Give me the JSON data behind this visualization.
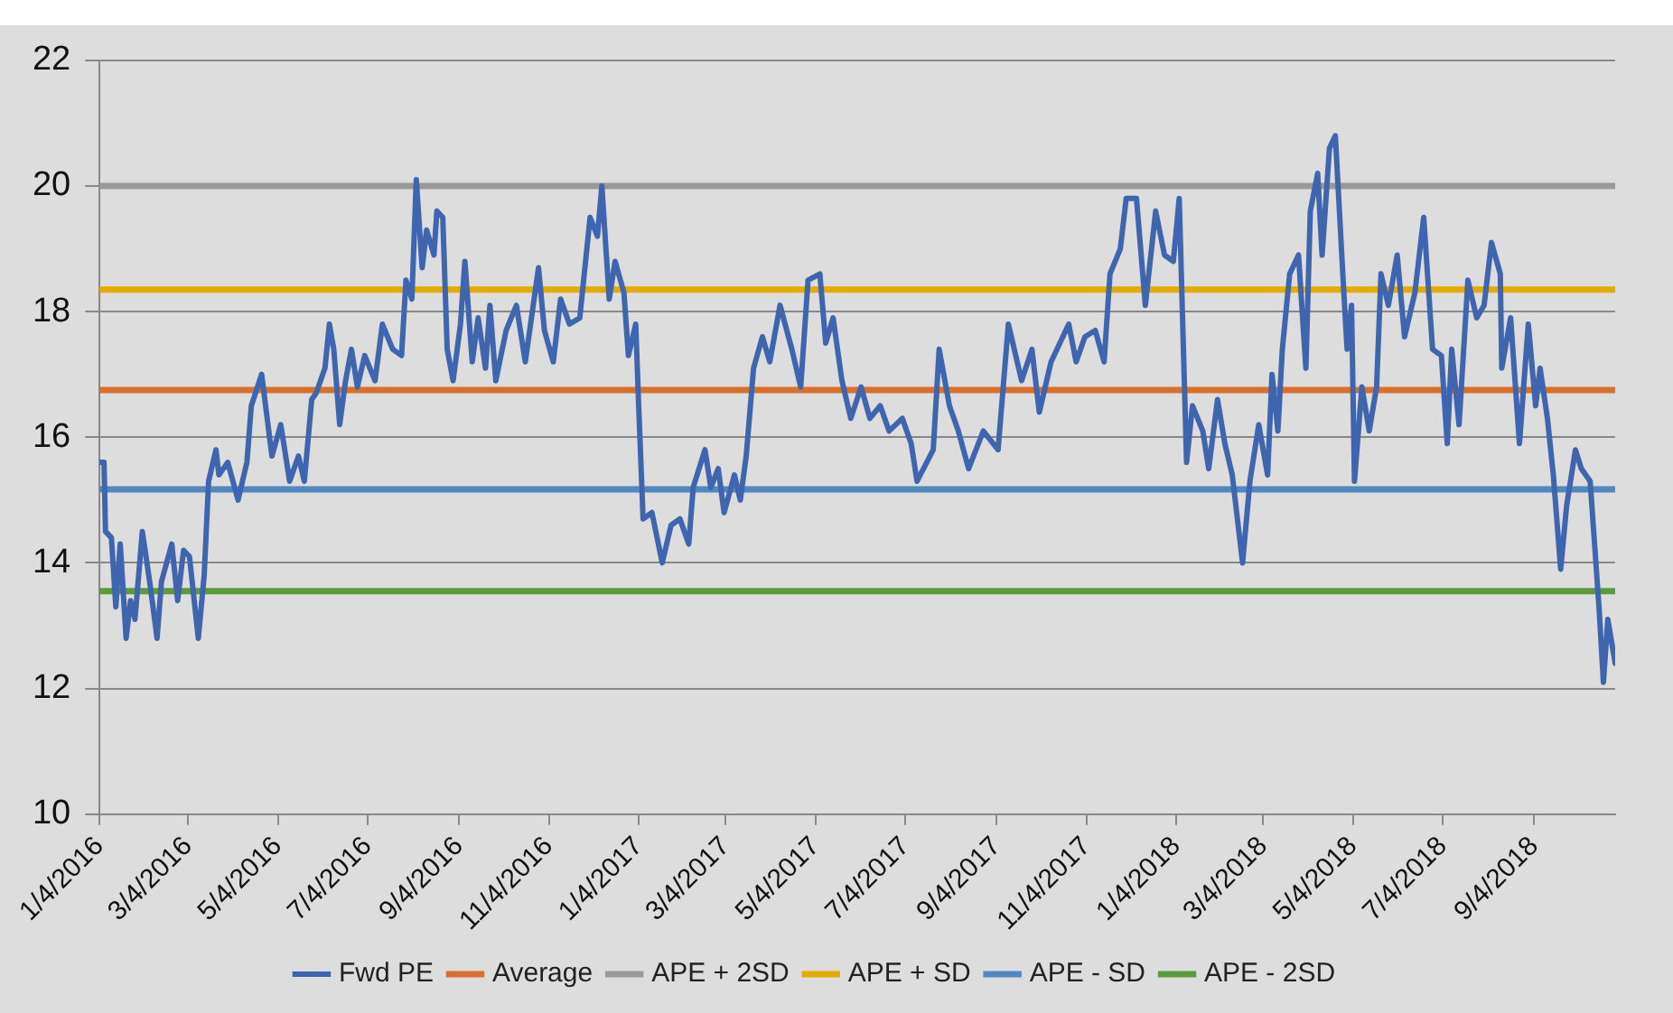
{
  "chart_data": {
    "type": "line",
    "xlim": [
      "2016-01-04",
      "2018-10-29"
    ],
    "xticks": [
      {
        "value": "2016-01-04",
        "label": "1/4/2016"
      },
      {
        "value": "2016-03-04",
        "label": "3/4/2016"
      },
      {
        "value": "2016-05-04",
        "label": "5/4/2016"
      },
      {
        "value": "2016-07-04",
        "label": "7/4/2016"
      },
      {
        "value": "2016-09-04",
        "label": "9/4/2016"
      },
      {
        "value": "2016-11-04",
        "label": "11/4/2016"
      },
      {
        "value": "2017-01-04",
        "label": "1/4/2017"
      },
      {
        "value": "2017-03-04",
        "label": "3/4/2017"
      },
      {
        "value": "2017-05-04",
        "label": "5/4/2017"
      },
      {
        "value": "2017-07-04",
        "label": "7/4/2017"
      },
      {
        "value": "2017-09-04",
        "label": "9/4/2017"
      },
      {
        "value": "2017-11-04",
        "label": "11/4/2017"
      },
      {
        "value": "2018-01-04",
        "label": "1/4/2018"
      },
      {
        "value": "2018-03-04",
        "label": "3/4/2018"
      },
      {
        "value": "2018-05-04",
        "label": "5/4/2018"
      },
      {
        "value": "2018-07-04",
        "label": "7/4/2018"
      },
      {
        "value": "2018-09-04",
        "label": "9/4/2018"
      }
    ],
    "ylim": [
      10,
      22
    ],
    "yticks": [
      10,
      12,
      14,
      16,
      18,
      20,
      22
    ],
    "grid": "y",
    "legend": "bottom",
    "marker": "none",
    "line_style": "solid",
    "series": [
      {
        "name": "Fwd PE",
        "color": "#3e65ae",
        "x": [
          "2016-01-04",
          "2016-01-07",
          "2016-01-08",
          "2016-01-12",
          "2016-01-15",
          "2016-01-18",
          "2016-01-22",
          "2016-01-25",
          "2016-01-28",
          "2016-02-02",
          "2016-02-07",
          "2016-02-12",
          "2016-02-15",
          "2016-02-22",
          "2016-02-26",
          "2016-03-01",
          "2016-03-05",
          "2016-03-11",
          "2016-03-15",
          "2016-03-18",
          "2016-03-23",
          "2016-03-25",
          "2016-03-31",
          "2016-04-07",
          "2016-04-13",
          "2016-04-16",
          "2016-04-23",
          "2016-04-30",
          "2016-05-06",
          "2016-05-12",
          "2016-05-18",
          "2016-05-22",
          "2016-05-27",
          "2016-05-30",
          "2016-06-05",
          "2016-06-08",
          "2016-06-11",
          "2016-06-15",
          "2016-06-19",
          "2016-06-23",
          "2016-06-27",
          "2016-07-02",
          "2016-07-09",
          "2016-07-14",
          "2016-07-21",
          "2016-07-27",
          "2016-07-30",
          "2016-08-03",
          "2016-08-06",
          "2016-08-10",
          "2016-08-13",
          "2016-08-18",
          "2016-08-20",
          "2016-08-24",
          "2016-08-27",
          "2016-08-31",
          "2016-09-05",
          "2016-09-08",
          "2016-09-13",
          "2016-09-17",
          "2016-09-22",
          "2016-09-25",
          "2016-09-29",
          "2016-10-06",
          "2016-10-13",
          "2016-10-19",
          "2016-10-28",
          "2016-11-01",
          "2016-11-07",
          "2016-11-12",
          "2016-11-18",
          "2016-11-25",
          "2016-12-02",
          "2016-12-07",
          "2016-12-10",
          "2016-12-15",
          "2016-12-19",
          "2016-12-25",
          "2016-12-28",
          "2017-01-02",
          "2017-01-04",
          "2017-01-07",
          "2017-01-13",
          "2017-01-20",
          "2017-01-26",
          "2017-02-01",
          "2017-02-07",
          "2017-02-10",
          "2017-02-18",
          "2017-02-22",
          "2017-02-27",
          "2017-03-03",
          "2017-03-10",
          "2017-03-14",
          "2017-03-18",
          "2017-03-23",
          "2017-03-29",
          "2017-04-03",
          "2017-04-10",
          "2017-04-18",
          "2017-04-24",
          "2017-04-29",
          "2017-05-07",
          "2017-05-11",
          "2017-05-16",
          "2017-05-22",
          "2017-05-28",
          "2017-06-04",
          "2017-06-10",
          "2017-06-17",
          "2017-06-23",
          "2017-07-02",
          "2017-07-08",
          "2017-07-12",
          "2017-07-23",
          "2017-07-27",
          "2017-08-03",
          "2017-08-09",
          "2017-08-16",
          "2017-08-26",
          "2017-09-05",
          "2017-09-12",
          "2017-09-21",
          "2017-09-28",
          "2017-10-03",
          "2017-10-11",
          "2017-10-23",
          "2017-10-28",
          "2017-11-03",
          "2017-11-10",
          "2017-11-16",
          "2017-11-20",
          "2017-11-27",
          "2017-12-01",
          "2017-12-08",
          "2017-12-14",
          "2017-12-21",
          "2017-12-27",
          "2018-01-02",
          "2018-01-06",
          "2018-01-11",
          "2018-01-15",
          "2018-01-22",
          "2018-01-26",
          "2018-02-01",
          "2018-02-06",
          "2018-02-11",
          "2018-02-18",
          "2018-02-23",
          "2018-03-01",
          "2018-03-07",
          "2018-03-10",
          "2018-03-14",
          "2018-03-17",
          "2018-03-22",
          "2018-03-28",
          "2018-04-02",
          "2018-04-05",
          "2018-04-10",
          "2018-04-13",
          "2018-04-18",
          "2018-04-22",
          "2018-04-28",
          "2018-04-30",
          "2018-05-03",
          "2018-05-05",
          "2018-05-10",
          "2018-05-15",
          "2018-05-20",
          "2018-05-23",
          "2018-05-28",
          "2018-06-03",
          "2018-06-08",
          "2018-06-15",
          "2018-06-21",
          "2018-06-27",
          "2018-07-03",
          "2018-07-07",
          "2018-07-10",
          "2018-07-15",
          "2018-07-21",
          "2018-07-27",
          "2018-08-01",
          "2018-08-06",
          "2018-08-12",
          "2018-08-13",
          "2018-08-19",
          "2018-08-25",
          "2018-08-31",
          "2018-09-05",
          "2018-09-08",
          "2018-09-13",
          "2018-09-17",
          "2018-09-22",
          "2018-09-26",
          "2018-10-02",
          "2018-10-06",
          "2018-10-12",
          "2018-10-18",
          "2018-10-21",
          "2018-10-24",
          "2018-10-29"
        ],
        "values": [
          15.6,
          15.6,
          14.5,
          14.4,
          13.3,
          14.3,
          12.8,
          13.4,
          13.1,
          14.5,
          13.7,
          12.8,
          13.7,
          14.3,
          13.4,
          14.2,
          14.1,
          12.8,
          13.8,
          15.3,
          15.8,
          15.4,
          15.6,
          15.0,
          15.6,
          16.5,
          17.0,
          15.7,
          16.2,
          15.3,
          15.7,
          15.3,
          16.6,
          16.7,
          17.1,
          17.8,
          17.4,
          16.2,
          16.9,
          17.4,
          16.8,
          17.3,
          16.9,
          17.8,
          17.4,
          17.3,
          18.5,
          18.2,
          20.1,
          18.7,
          19.3,
          18.9,
          19.6,
          19.5,
          17.4,
          16.9,
          17.8,
          18.8,
          17.2,
          17.9,
          17.1,
          18.1,
          16.9,
          17.7,
          18.1,
          17.2,
          18.7,
          17.7,
          17.2,
          18.2,
          17.8,
          17.9,
          19.5,
          19.2,
          20.0,
          18.2,
          18.8,
          18.3,
          17.3,
          17.8,
          16.5,
          14.7,
          14.8,
          14.0,
          14.6,
          14.7,
          14.3,
          15.2,
          15.8,
          15.2,
          15.5,
          14.8,
          15.4,
          15.0,
          15.7,
          17.1,
          17.6,
          17.2,
          18.1,
          17.4,
          16.8,
          18.5,
          18.6,
          17.5,
          17.9,
          16.9,
          16.3,
          16.8,
          16.3,
          16.5,
          16.1,
          16.3,
          15.9,
          15.3,
          15.8,
          17.4,
          16.5,
          16.1,
          15.5,
          16.1,
          15.8,
          17.8,
          16.9,
          17.4,
          16.4,
          17.2,
          17.8,
          17.2,
          17.6,
          17.7,
          17.2,
          18.6,
          19.0,
          19.8,
          19.8,
          18.1,
          19.6,
          18.9,
          18.8,
          19.8,
          15.6,
          16.5,
          16.1,
          15.5,
          16.6,
          15.9,
          15.4,
          14.0,
          15.3,
          16.2,
          15.4,
          17.0,
          16.1,
          17.4,
          18.6,
          18.9,
          17.1,
          19.6,
          20.2,
          18.9,
          20.6,
          20.8,
          18.2,
          17.4,
          18.1,
          15.3,
          16.8,
          16.1,
          16.8,
          18.6,
          18.1,
          18.9,
          17.6,
          18.3,
          19.5,
          17.4,
          17.3,
          15.9,
          17.4,
          16.2,
          18.5,
          17.9,
          18.1,
          19.1,
          18.6,
          17.1,
          17.9,
          15.9,
          17.8,
          16.5,
          17.1,
          16.3,
          15.4,
          13.9,
          14.9,
          15.8,
          15.5,
          15.3,
          13.3,
          12.1,
          13.1,
          12.4
        ]
      },
      {
        "name": "Average",
        "color": "#d9702c",
        "x": [
          "2016-01-04",
          "2018-10-29"
        ],
        "values": [
          16.75,
          16.75
        ]
      },
      {
        "name": "APE + 2SD",
        "color": "#999999",
        "x": [
          "2016-01-04",
          "2018-10-29"
        ],
        "values": [
          20.0,
          20.0
        ]
      },
      {
        "name": "APE + SD",
        "color": "#e5ab00",
        "x": [
          "2016-01-04",
          "2018-10-29"
        ],
        "values": [
          18.35,
          18.35
        ]
      },
      {
        "name": "APE - SD",
        "color": "#5089c0",
        "x": [
          "2016-01-04",
          "2018-10-29"
        ],
        "values": [
          15.17,
          15.17
        ]
      },
      {
        "name": "APE - 2SD",
        "color": "#5c9a3b",
        "x": [
          "2016-01-04",
          "2018-10-29"
        ],
        "values": [
          13.55,
          13.55
        ]
      }
    ]
  }
}
